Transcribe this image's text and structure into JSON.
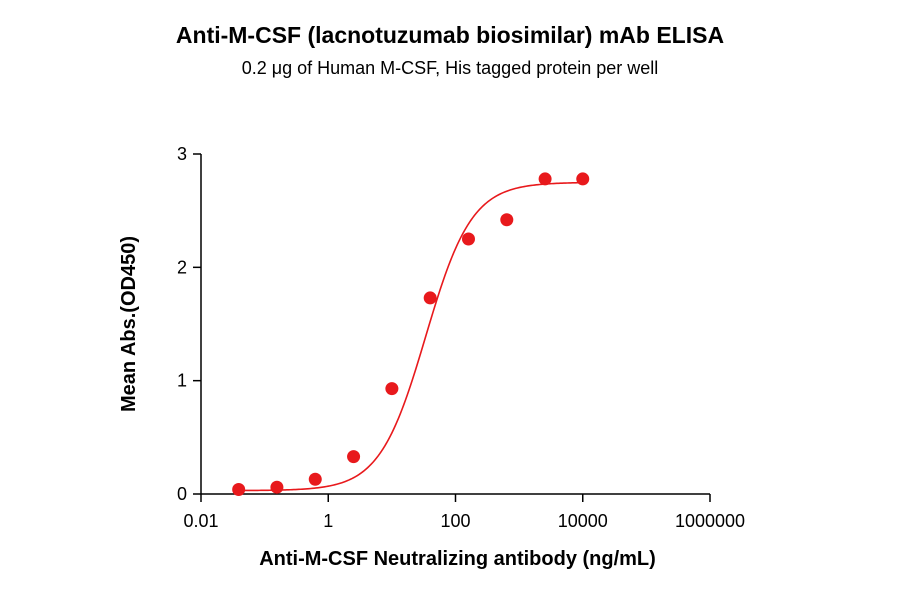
{
  "chart_data": {
    "type": "scatter",
    "title": "Anti-M-CSF (lacnotuzumab biosimilar) mAb ELISA",
    "subtitle": "0.2 μg of Human M-CSF, His tagged protein per well",
    "xlabel": "Anti-M-CSF Neutralizing antibody (ng/mL)",
    "ylabel": "Mean Abs.(OD450)",
    "xscale": "log10",
    "xlim": [
      0.01,
      1000000
    ],
    "ylim": [
      0,
      3
    ],
    "x_ticks": [
      0.01,
      1,
      100,
      10000,
      1000000
    ],
    "x_tick_labels": [
      "0.01",
      "1",
      "100",
      "10000",
      "1000000"
    ],
    "y_ticks": [
      0,
      1,
      2,
      3
    ],
    "y_tick_labels": [
      "0",
      "1",
      "2",
      "3"
    ],
    "series": [
      {
        "color": "#e8191c",
        "marker": "circle",
        "fit": "four-parameter logistic",
        "x": [
          0.0391,
          0.156,
          0.625,
          2.5,
          10,
          40,
          160,
          640,
          2560,
          10000
        ],
        "y": [
          0.04,
          0.06,
          0.13,
          0.33,
          0.93,
          1.73,
          2.25,
          2.42,
          2.78,
          2.78
        ]
      }
    ],
    "grid": false,
    "legend": "none"
  }
}
